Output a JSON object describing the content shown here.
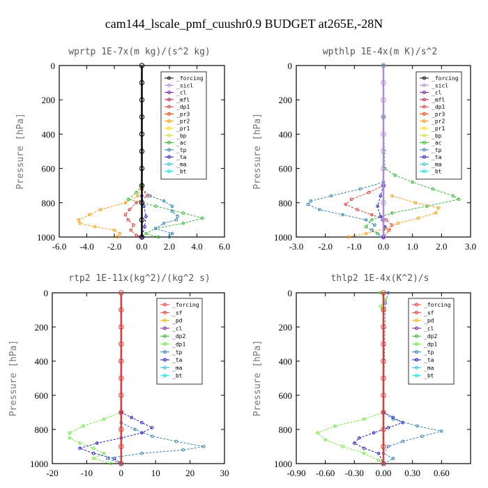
{
  "figure_title": "cam144_lscale_pmf_cuushr0.9  BUDGET at265E,-28N",
  "colors": {
    "_forcing": "#000000",
    "_sicl": "#b08ad8",
    "_cl": "#7a1fa2",
    "_mfl": "#c2185b",
    "_dp1": "#e53935",
    "_pr3": "#ff3d00",
    "_pr2": "#ff9800",
    "_pr1": "#ffd400",
    "_bp": "#cddc39",
    "_ac": "#2db82d",
    "_tp": "#2f7fb6",
    "_ta": "#1a1acd",
    "_ma": "#26c6da",
    "_bt": "#00e5ee",
    "_sf": "#e53935",
    "_pd": "#ffb300",
    "_dp2": "#2db82d",
    "b_dp1": "#66ee33"
  },
  "chart_data": [
    {
      "type": "line",
      "title": "wprtp   1E-7x(m kg)/(s^2 kg)",
      "ylabel": "Pressure [hPa]",
      "xlim": [
        -6,
        6
      ],
      "ylim": [
        1000,
        0
      ],
      "xticks": [
        "-6.0",
        "-4.0",
        "-2.0",
        "0.0",
        "2.0",
        "4.0",
        "6.0"
      ],
      "xtick_values": [
        -6,
        -4,
        -2,
        0,
        2,
        4,
        6
      ],
      "yticks": [
        "0",
        "200",
        "400",
        "600",
        "800",
        "1000"
      ],
      "ytick_values": [
        0,
        200,
        400,
        600,
        800,
        1000
      ],
      "legend": [
        "_forcing",
        "_sicl",
        "_cl",
        "_mfl",
        "_dp1",
        "_pr3",
        "_pr2",
        "_pr1",
        "_bp",
        "_ac",
        "_tp",
        "_ta",
        "_ma",
        "_bt"
      ],
      "series": [
        {
          "name": "_pr2",
          "color_key": "_pr2",
          "p": [
            700,
            760,
            800,
            840,
            870,
            900,
            920,
            940,
            960,
            980,
            1000
          ],
          "x": [
            0,
            -0.3,
            -1.2,
            -3.0,
            -3.8,
            -4.6,
            -4.5,
            -3.4,
            -2.0,
            -1.6,
            -1.8
          ]
        },
        {
          "name": "_ac",
          "color_key": "_ac",
          "p": [
            700,
            740,
            780,
            820,
            860,
            890,
            920,
            950,
            980,
            1000
          ],
          "x": [
            0,
            -0.4,
            -1.0,
            1.0,
            3.0,
            4.4,
            3.0,
            1.0,
            0.3,
            1.2
          ]
        },
        {
          "name": "_tp",
          "color_key": "_tp",
          "p": [
            720,
            760,
            790,
            820,
            850,
            880,
            900,
            920,
            950,
            980,
            1000
          ],
          "x": [
            0,
            0.6,
            1.6,
            2.2,
            2.2,
            2.6,
            2.5,
            1.6,
            1.0,
            2.2,
            2.0
          ]
        },
        {
          "name": "_dp1",
          "color_key": "_dp1",
          "p": [
            720,
            760,
            800,
            840,
            870,
            900,
            930,
            960,
            990,
            1000
          ],
          "x": [
            0,
            0.4,
            -0.4,
            -0.9,
            -1.2,
            -1.0,
            -0.6,
            -0.8,
            -0.4,
            0
          ]
        },
        {
          "name": "_ta",
          "color_key": "_ta",
          "p": [
            760,
            820,
            880,
            940,
            1000
          ],
          "x": [
            0,
            0.15,
            0.3,
            0.2,
            0
          ]
        },
        {
          "name": "_forcing",
          "color_key": "_forcing",
          "p": [
            0,
            100,
            200,
            300,
            400,
            500,
            600,
            700,
            800,
            900,
            1000
          ],
          "x": [
            0,
            0,
            0,
            0,
            0,
            0,
            0,
            0,
            0,
            0,
            0
          ]
        }
      ]
    },
    {
      "type": "line",
      "title": "wpthlp   1E-4x(m K)/s^2",
      "ylabel": "Pressure [hPa]",
      "xlim": [
        -3,
        3
      ],
      "ylim": [
        1000,
        0
      ],
      "xticks": [
        "-3.0",
        "-2.0",
        "-1.0",
        "0.0",
        "1.0",
        "2.0",
        "3.0"
      ],
      "xtick_values": [
        -3,
        -2,
        -1,
        0,
        1,
        2,
        3
      ],
      "yticks": [
        "0",
        "200",
        "400",
        "600",
        "800",
        "1000"
      ],
      "ytick_values": [
        0,
        200,
        400,
        600,
        800,
        1000
      ],
      "legend": [
        "_forcing",
        "_sicl",
        "_cl",
        "_mfl",
        "_dp1",
        "_pr3",
        "_pr2",
        "_pr1",
        "_bp",
        "_ac",
        "_tp",
        "_ta",
        "_ma",
        "_bt"
      ],
      "series": [
        {
          "name": "_ac",
          "color_key": "_ac",
          "p": [
            0,
            300,
            600,
            640,
            680,
            720,
            760,
            780,
            820,
            860,
            900,
            940,
            980,
            1000
          ],
          "x": [
            0,
            0,
            0.05,
            0.4,
            1.0,
            1.7,
            2.4,
            2.6,
            1.5,
            0.3,
            -0.4,
            -0.6,
            -0.2,
            0
          ]
        },
        {
          "name": "_tp",
          "color_key": "_tp",
          "p": [
            680,
            720,
            760,
            790,
            810,
            840,
            870,
            900,
            930,
            960,
            1000
          ],
          "x": [
            0,
            -0.8,
            -1.8,
            -2.5,
            -2.6,
            -2.2,
            -1.4,
            -0.6,
            -0.3,
            -0.4,
            0
          ]
        },
        {
          "name": "_dp1",
          "color_key": "_dp1",
          "p": [
            700,
            740,
            780,
            810,
            840,
            870,
            900,
            930,
            960,
            1000
          ],
          "x": [
            0,
            -0.5,
            -1.1,
            -1.3,
            -0.9,
            -0.4,
            0.1,
            0.3,
            0.2,
            0
          ]
        },
        {
          "name": "_pr2",
          "color_key": "_pr2",
          "p": [
            760,
            800,
            830,
            860,
            890,
            920,
            950,
            980,
            1000
          ],
          "x": [
            0.3,
            1.1,
            1.9,
            1.8,
            1.2,
            0.5,
            0.1,
            -0.6,
            -1.2
          ]
        },
        {
          "name": "_ta",
          "color_key": "_ta",
          "p": [
            700,
            760,
            820,
            880,
            940,
            1000
          ],
          "x": [
            0,
            -0.1,
            -0.2,
            -0.1,
            0.05,
            0
          ]
        },
        {
          "name": "_sicl",
          "color_key": "_sicl",
          "p": [
            0,
            100,
            200,
            300,
            400,
            500,
            600,
            700,
            800,
            900,
            1000
          ],
          "x": [
            0,
            0,
            0,
            0,
            0,
            0,
            0,
            0,
            0,
            0,
            0
          ]
        }
      ]
    },
    {
      "type": "line",
      "title": "rtp2   1E-11x(kg^2)/(kg^2 s)",
      "ylabel": "Pressure [hPa]",
      "xlim": [
        -20,
        30
      ],
      "ylim": [
        1000,
        0
      ],
      "xticks": [
        "-20",
        "-10",
        "0",
        "10",
        "20",
        "30"
      ],
      "xtick_values": [
        -20,
        -10,
        0,
        10,
        20,
        30
      ],
      "yticks": [
        "0",
        "200",
        "400",
        "600",
        "800",
        "1000"
      ],
      "ytick_values": [
        0,
        200,
        400,
        600,
        800,
        1000
      ],
      "legend": [
        "_forcing",
        "_sf",
        "_pd",
        "_cl",
        "_dp2",
        "_dp1",
        "_tp",
        "_ta",
        "_ma",
        "_bt"
      ],
      "series": [
        {
          "name": "_dp1",
          "color_key": "b_dp1",
          "p": [
            700,
            740,
            780,
            820,
            850,
            880,
            910,
            940,
            970,
            1000
          ],
          "x": [
            0,
            -5,
            -11,
            -15,
            -15,
            -12,
            -8,
            -5,
            -8,
            -3
          ]
        },
        {
          "name": "_ta",
          "color_key": "_ta",
          "p": [
            700,
            730,
            760,
            790,
            820,
            850,
            880,
            910,
            940,
            970,
            1000
          ],
          "x": [
            0,
            3,
            6,
            9,
            6,
            0,
            -7,
            -12,
            -8,
            -2,
            0
          ]
        },
        {
          "name": "_tp",
          "color_key": "_tp",
          "p": [
            760,
            800,
            840,
            870,
            900,
            920,
            940,
            970,
            1000
          ],
          "x": [
            0,
            4,
            9,
            16,
            24,
            18,
            6,
            -4,
            0
          ]
        },
        {
          "name": "_forcing",
          "color_key": "_sf",
          "p": [
            0,
            100,
            200,
            300,
            400,
            500,
            600,
            700,
            800,
            900,
            1000
          ],
          "x": [
            0,
            0,
            0,
            0,
            0,
            0,
            0,
            0,
            0,
            0,
            0
          ]
        }
      ]
    },
    {
      "type": "line",
      "title": "thlp2   1E-4x(K^2)/s",
      "ylabel": "Pressure [hPa]",
      "xlim": [
        -0.9,
        0.9
      ],
      "ylim": [
        1000,
        0
      ],
      "xticks": [
        "-0.90",
        "-0.60",
        "-0.30",
        "0.00",
        "0.30",
        "0.60"
      ],
      "xtick_values": [
        -0.9,
        -0.6,
        -0.3,
        0,
        0.3,
        0.6
      ],
      "yticks": [
        "0",
        "200",
        "400",
        "600",
        "800",
        "1000"
      ],
      "ytick_values": [
        0,
        200,
        400,
        600,
        800,
        1000
      ],
      "legend": [
        "_forcing",
        "_sf",
        "_pd",
        "_cl",
        "_dp2",
        "_dp1",
        "_tp",
        "_ta",
        "_ma",
        "_bt"
      ],
      "series": [
        {
          "name": "_dp1",
          "color_key": "b_dp1",
          "p": [
            0,
            40,
            80,
            100,
            700,
            740,
            780,
            820,
            860,
            900,
            940,
            980,
            1000
          ],
          "x": [
            -0.04,
            0.02,
            -0.03,
            0,
            0,
            -0.2,
            -0.5,
            -0.68,
            -0.6,
            -0.42,
            -0.2,
            -0.05,
            0
          ]
        },
        {
          "name": "_ta",
          "color_key": "_ta",
          "p": [
            700,
            730,
            760,
            790,
            820,
            850,
            880,
            910,
            940,
            1000
          ],
          "x": [
            0,
            0.1,
            0.2,
            0.05,
            -0.1,
            -0.25,
            -0.3,
            -0.2,
            -0.05,
            0
          ]
        },
        {
          "name": "_tp",
          "color_key": "_tp",
          "p": [
            0,
            60,
            700,
            740,
            780,
            810,
            840,
            870,
            900,
            940,
            970,
            1000
          ],
          "x": [
            0.05,
            0.02,
            0,
            0.1,
            0.35,
            0.6,
            0.4,
            0.2,
            0.05,
            0,
            0.1,
            0
          ]
        },
        {
          "name": "_forcing",
          "color_key": "_sf",
          "p": [
            0,
            100,
            200,
            300,
            400,
            500,
            600,
            700,
            800,
            900,
            1000
          ],
          "x": [
            0,
            0,
            0,
            0,
            0,
            0,
            0,
            0,
            0,
            0,
            0
          ]
        }
      ]
    }
  ]
}
